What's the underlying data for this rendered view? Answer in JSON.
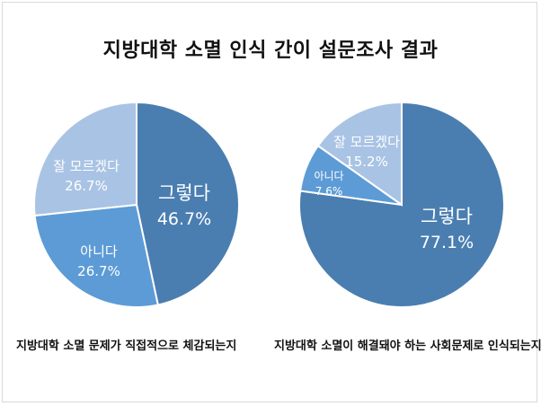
{
  "title": "지방대학 소멸 인식 간이 설문조사 결과",
  "colors": {
    "yes": "#4a7eb0",
    "no": "#5d9bd6",
    "dontknow": "#a9c3e4"
  },
  "chart_data": [
    {
      "type": "pie",
      "caption": "지방대학 소멸 문제가 직접적으로 체감되는지",
      "slices": [
        {
          "key": "yes",
          "label": "그렇다",
          "value": 46.7,
          "pct": "46.7%"
        },
        {
          "key": "no",
          "label": "아니다",
          "value": 26.7,
          "pct": "26.7%"
        },
        {
          "key": "dontknow",
          "label": "잘 모르겠다",
          "value": 26.7,
          "pct": "26.7%"
        }
      ]
    },
    {
      "type": "pie",
      "caption": "지방대학 소멸이 해결돼야 하는 사회문제로 인식되는지",
      "slices": [
        {
          "key": "yes",
          "label": "그렇다",
          "value": 77.1,
          "pct": "77.1%"
        },
        {
          "key": "no",
          "label": "아니다",
          "value": 7.6,
          "pct": "7.6%"
        },
        {
          "key": "dontknow",
          "label": "잘 모르겠다",
          "value": 15.2,
          "pct": "15.2%"
        }
      ]
    }
  ]
}
